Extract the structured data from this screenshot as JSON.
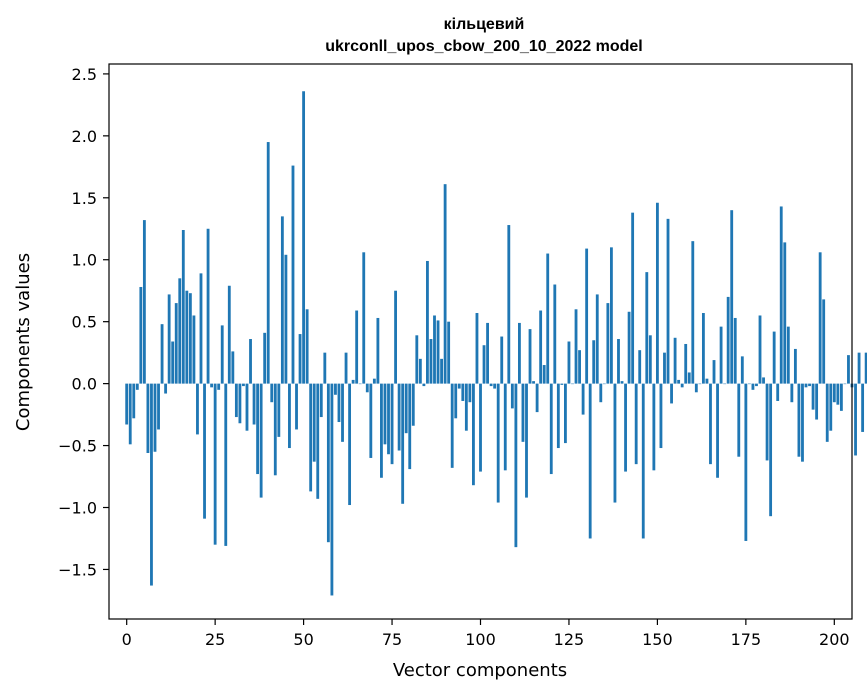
{
  "chart_data": {
    "type": "bar",
    "title": "кільцевий",
    "subtitle": "ukrconll_upos_cbow_200_10_2022 model",
    "xlabel": "Vector components",
    "ylabel": "Components values",
    "xlim": [
      -5,
      205
    ],
    "ylim": [
      -1.9,
      2.58
    ],
    "xticks": [
      0,
      25,
      50,
      75,
      100,
      125,
      150,
      175,
      200
    ],
    "yticks": [
      -1.5,
      -1.0,
      -0.5,
      0.0,
      0.5,
      1.0,
      1.5,
      2.0,
      2.5
    ],
    "bar_color": "#1f77b4",
    "grid": false,
    "values": [
      -0.33,
      -0.49,
      -0.28,
      -0.05,
      0.78,
      1.32,
      -0.56,
      -1.63,
      -0.55,
      -0.37,
      0.48,
      -0.08,
      0.72,
      0.34,
      0.65,
      0.85,
      1.24,
      0.75,
      0.73,
      0.55,
      -0.41,
      0.89,
      -1.09,
      1.25,
      -0.03,
      -1.3,
      -0.05,
      0.47,
      -1.31,
      0.79,
      0.26,
      -0.27,
      -0.32,
      -0.02,
      -0.38,
      0.36,
      -0.33,
      -0.73,
      -0.92,
      0.41,
      1.95,
      -0.15,
      -0.74,
      -0.43,
      1.35,
      1.04,
      -0.52,
      1.76,
      -0.37,
      0.4,
      2.36,
      0.6,
      -0.87,
      -0.63,
      -0.93,
      -0.27,
      0.25,
      -1.28,
      -1.71,
      -0.09,
      -0.31,
      -0.47,
      0.25,
      -0.98,
      0.03,
      0.59,
      0.0,
      1.06,
      -0.07,
      -0.6,
      0.04,
      0.53,
      -0.76,
      -0.49,
      -0.57,
      -0.65,
      0.75,
      -0.54,
      -0.97,
      -0.4,
      -0.69,
      -0.34,
      0.39,
      0.2,
      -0.02,
      0.99,
      0.36,
      0.55,
      0.51,
      0.2,
      1.61,
      0.5,
      -0.68,
      -0.28,
      -0.04,
      -0.14,
      -0.38,
      -0.15,
      -0.82,
      0.57,
      -0.71,
      0.31,
      0.49,
      -0.02,
      -0.04,
      -0.96,
      0.38,
      -0.7,
      1.28,
      -0.2,
      -1.32,
      0.49,
      -0.47,
      -0.92,
      0.44,
      0.02,
      -0.23,
      0.59,
      0.15,
      1.05,
      -0.73,
      0.8,
      -0.52,
      -0.01,
      -0.48,
      0.34,
      0.0,
      0.6,
      0.27,
      -0.25,
      1.09,
      -1.25,
      0.35,
      0.72,
      -0.15,
      0.0,
      0.65,
      1.1,
      -0.96,
      0.36,
      0.02,
      -0.71,
      0.58,
      1.38,
      -0.65,
      0.27,
      -1.25,
      0.9,
      0.39,
      -0.7,
      1.46,
      -0.52,
      0.25,
      1.33,
      -0.16,
      0.37,
      0.03,
      -0.03,
      0.32,
      0.09,
      1.15,
      -0.07,
      0.0,
      0.57,
      0.04,
      -0.65,
      0.19,
      -0.76,
      0.46,
      0.0,
      0.7,
      1.4,
      0.53,
      -0.59,
      0.22,
      -1.27,
      0.0,
      -0.05,
      -0.02,
      0.55,
      0.05,
      -0.62,
      -1.07,
      0.42,
      -0.14,
      1.43,
      1.14,
      0.46,
      -0.15,
      0.28,
      -0.59,
      -0.63,
      -0.03,
      -0.02,
      -0.21,
      -0.29,
      1.06,
      0.68,
      -0.47,
      -0.38,
      -0.15,
      -0.17,
      -0.22,
      0.0,
      0.23,
      -0.03,
      -0.58,
      0.25,
      -0.39,
      0.25
    ]
  }
}
